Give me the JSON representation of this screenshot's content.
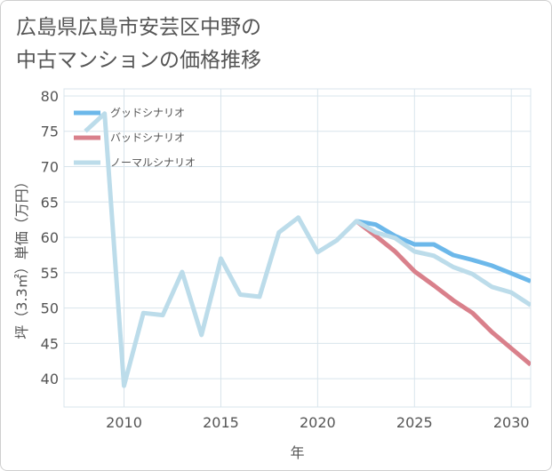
{
  "title_lines": [
    "広島県広島市安芸区中野の",
    "中古マンションの価格推移"
  ],
  "colors": {
    "good": "#6cb8ea",
    "bad": "#d9808b",
    "normal": "#bcdcea",
    "grid": "#d8e4ec",
    "axis": "#555555"
  },
  "chart_data": {
    "type": "line",
    "title": "広島県広島市安芸区中野の中古マンションの価格推移",
    "xlabel": "年",
    "ylabel": "坪（3.3㎡）単価（万円）",
    "xlim": [
      2006.9,
      2031
    ],
    "ylim": [
      36,
      81
    ],
    "xticks": [
      2010,
      2015,
      2020,
      2025,
      2030
    ],
    "yticks": [
      40,
      45,
      50,
      55,
      60,
      65,
      70,
      75,
      80
    ],
    "grid": true,
    "legend_position": "top-left",
    "series": [
      {
        "name": "グッドシナリオ",
        "color_key": "good",
        "x": [
          2022,
          2023,
          2024,
          2025,
          2026,
          2027,
          2028,
          2029,
          2030,
          2031
        ],
        "y": [
          62.3,
          61.8,
          60.2,
          59.0,
          59.0,
          57.5,
          56.8,
          56.0,
          54.9,
          53.8
        ]
      },
      {
        "name": "バッドシナリオ",
        "color_key": "bad",
        "x": [
          2022,
          2023,
          2024,
          2025,
          2026,
          2027,
          2028,
          2029,
          2030,
          2031
        ],
        "y": [
          62.3,
          60.2,
          58.0,
          55.2,
          53.2,
          51.1,
          49.3,
          46.6,
          44.3,
          42.0
        ]
      },
      {
        "name": "ノーマルシナリオ",
        "color_key": "normal",
        "x": [
          2008,
          2009,
          2010,
          2011,
          2012,
          2013,
          2014,
          2015,
          2016,
          2017,
          2018,
          2019,
          2020,
          2021,
          2022,
          2023,
          2024,
          2025,
          2026,
          2027,
          2028,
          2029,
          2030,
          2031
        ],
        "y": [
          75.0,
          77.5,
          39.0,
          49.3,
          49.0,
          55.1,
          46.2,
          57.0,
          51.9,
          51.6,
          60.7,
          62.8,
          57.9,
          59.6,
          62.3,
          60.7,
          59.9,
          58.0,
          57.4,
          55.8,
          54.8,
          53.0,
          52.2,
          50.4
        ]
      }
    ]
  }
}
